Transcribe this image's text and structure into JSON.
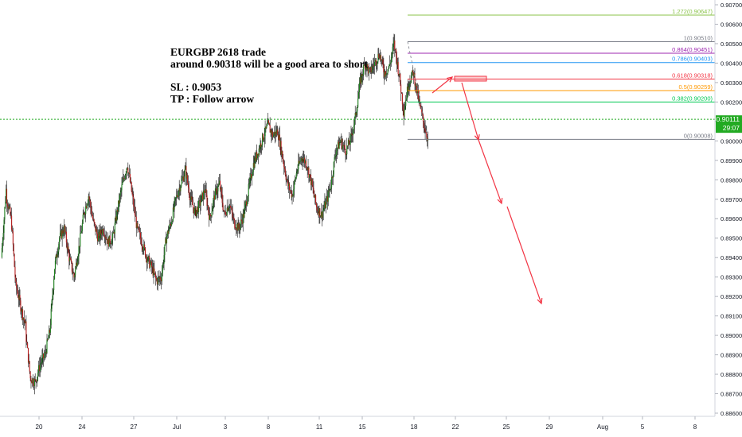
{
  "chart_data": {
    "type": "candlestick",
    "symbol": "EURGBP",
    "ylim": [
      0.8855,
      0.9071
    ],
    "y_ticks": [
      "0.90700",
      "0.90600",
      "0.90500",
      "0.90400",
      "0.90300",
      "0.90200",
      "0.90100",
      "0.90000",
      "0.89900",
      "0.89800",
      "0.89700",
      "0.89600",
      "0.89500",
      "0.89400",
      "0.89300",
      "0.89200",
      "0.89100",
      "0.89000",
      "0.88900",
      "0.88800",
      "0.88700",
      "0.88600"
    ],
    "x_ticks": [
      "20",
      "24",
      "27",
      "Jul",
      "3",
      "8",
      "11",
      "15",
      "18",
      "22",
      "25",
      "29",
      "Aug",
      "5",
      "8"
    ],
    "current_price": {
      "label": "0.90111",
      "value": 0.90111,
      "countdown": "29:07",
      "color": "#22aa22"
    },
    "fib_levels": [
      {
        "label": "1.272(0.90647)",
        "value": 0.90647,
        "color": "#8bc34a"
      },
      {
        "label": "1(0.90510)",
        "value": 0.9051,
        "color": "#787b86"
      },
      {
        "label": "0.864(0.90451)",
        "value": 0.90451,
        "color": "#9c27b0"
      },
      {
        "label": "0.786(0.90403)",
        "value": 0.90403,
        "color": "#2196f3"
      },
      {
        "label": "0.618(0.90318)",
        "value": 0.90318,
        "color": "#f23645"
      },
      {
        "label": "0.5(0.90259)",
        "value": 0.90259,
        "color": "#ff9800"
      },
      {
        "label": "0.382(0.90200)",
        "value": 0.902,
        "color": "#00c853"
      },
      {
        "label": "0(0.90008)",
        "value": 0.90008,
        "color": "#787b86"
      }
    ],
    "price_path": [
      [
        0.894,
        0.8975
      ],
      [
        0.8972,
        0.896
      ],
      [
        0.8962,
        0.8925
      ],
      [
        0.8926,
        0.8915
      ],
      [
        0.8915,
        0.8905
      ],
      [
        0.8902,
        0.8878
      ],
      [
        0.8878,
        0.8876
      ],
      [
        0.8876,
        0.8885
      ],
      [
        0.8885,
        0.889
      ],
      [
        0.889,
        0.8902
      ],
      [
        0.8902,
        0.8935
      ],
      [
        0.8935,
        0.895
      ],
      [
        0.895,
        0.8955
      ],
      [
        0.8955,
        0.894
      ],
      [
        0.894,
        0.893
      ],
      [
        0.893,
        0.8945
      ],
      [
        0.8945,
        0.8962
      ],
      [
        0.8962,
        0.8972
      ],
      [
        0.8972,
        0.8958
      ],
      [
        0.8958,
        0.895
      ],
      [
        0.895,
        0.8955
      ],
      [
        0.8955,
        0.8948
      ],
      [
        0.8948,
        0.895
      ],
      [
        0.895,
        0.8965
      ],
      [
        0.8965,
        0.8978
      ],
      [
        0.8978,
        0.8988
      ],
      [
        0.8988,
        0.8972
      ],
      [
        0.8972,
        0.8955
      ],
      [
        0.8955,
        0.8948
      ],
      [
        0.8948,
        0.894
      ],
      [
        0.894,
        0.8935
      ],
      [
        0.8935,
        0.8928
      ],
      [
        0.8928,
        0.893
      ],
      [
        0.893,
        0.895
      ],
      [
        0.895,
        0.8958
      ],
      [
        0.8958,
        0.897
      ],
      [
        0.897,
        0.8978
      ],
      [
        0.8978,
        0.8985
      ],
      [
        0.8985,
        0.897
      ],
      [
        0.897,
        0.8963
      ],
      [
        0.8963,
        0.8968
      ],
      [
        0.8968,
        0.8975
      ],
      [
        0.8975,
        0.896
      ],
      [
        0.896,
        0.8972
      ],
      [
        0.8972,
        0.8978
      ],
      [
        0.8978,
        0.8962
      ],
      [
        0.8962,
        0.8968
      ],
      [
        0.8968,
        0.8958
      ],
      [
        0.8958,
        0.8955
      ],
      [
        0.8955,
        0.8962
      ],
      [
        0.8962,
        0.8975
      ],
      [
        0.8975,
        0.8988
      ],
      [
        0.8988,
        0.8995
      ],
      [
        0.8995,
        0.9002
      ],
      [
        0.9002,
        0.9008
      ],
      [
        0.9008,
        0.9003
      ],
      [
        0.9003,
        0.9005
      ],
      [
        0.9005,
        0.8992
      ],
      [
        0.8992,
        0.8978
      ],
      [
        0.8978,
        0.8972
      ],
      [
        0.8972,
        0.8985
      ],
      [
        0.8985,
        0.8992
      ],
      [
        0.8992,
        0.8988
      ],
      [
        0.8988,
        0.8978
      ],
      [
        0.8978,
        0.8966
      ],
      [
        0.8966,
        0.8962
      ],
      [
        0.8962,
        0.8968
      ],
      [
        0.8968,
        0.8978
      ],
      [
        0.8978,
        0.8995
      ],
      [
        0.8995,
        0.9
      ],
      [
        0.9,
        0.8995
      ],
      [
        0.8995,
        0.9
      ],
      [
        0.9,
        0.9012
      ],
      [
        0.9012,
        0.903
      ],
      [
        0.903,
        0.904
      ],
      [
        0.904,
        0.9035
      ],
      [
        0.9035,
        0.904
      ],
      [
        0.904,
        0.9045
      ],
      [
        0.9045,
        0.9035
      ],
      [
        0.9035,
        0.9038
      ],
      [
        0.9038,
        0.905
      ],
      [
        0.905,
        0.9035
      ],
      [
        0.9035,
        0.9015
      ],
      [
        0.9015,
        0.903
      ],
      [
        0.903,
        0.9035
      ],
      [
        0.9035,
        0.9022
      ],
      [
        0.9022,
        0.901
      ],
      [
        0.901,
        0.9001
      ]
    ]
  },
  "annotation": {
    "line1": "EURGBP 2618 trade",
    "line2": "around 0.90318 will be a good area to short",
    "line3": "SL : 0.9053",
    "line4": "TP : Follow arrow"
  }
}
